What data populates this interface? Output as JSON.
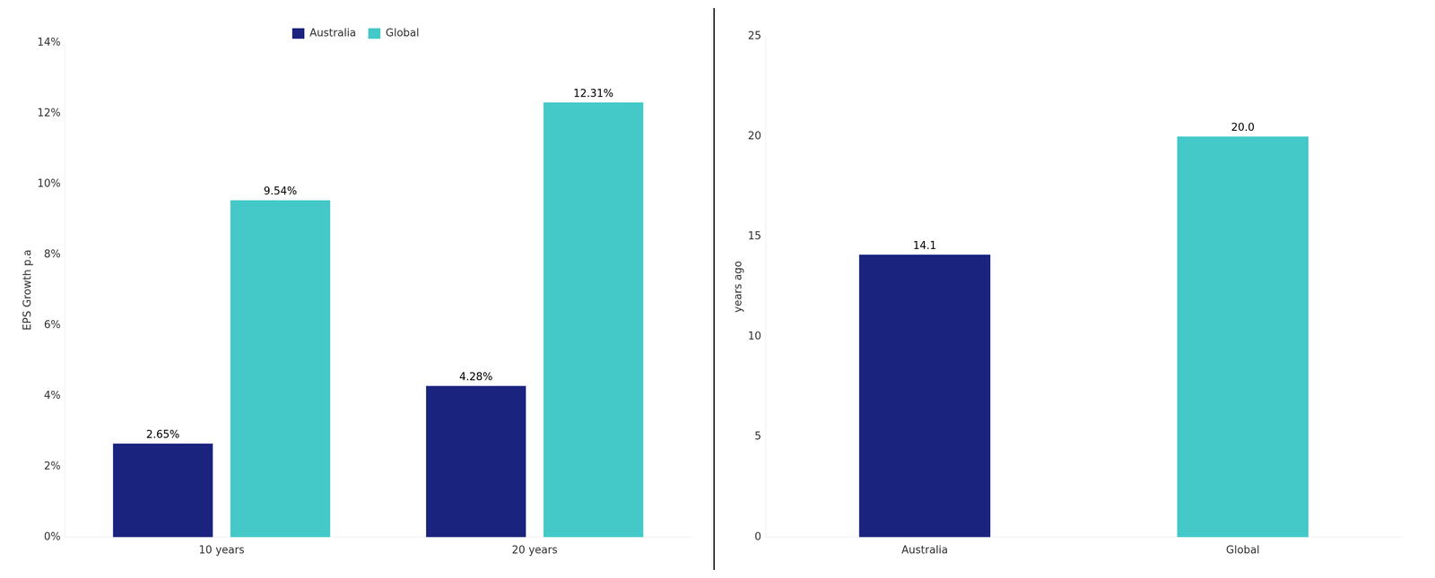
{
  "chart_data": [
    {
      "type": "bar",
      "categories": [
        "10 years",
        "20 years"
      ],
      "series": [
        {
          "name": "Australia",
          "color": "#1a237e",
          "values": [
            0.0265,
            0.0428
          ],
          "value_labels": [
            "2.65%",
            "4.28%"
          ]
        },
        {
          "name": "Global",
          "color": "#44c8c8",
          "values": [
            0.0954,
            0.1231
          ],
          "value_labels": [
            "9.54%",
            "12.31%"
          ]
        }
      ],
      "ylabel": "EPS Growth p.a",
      "ylim": [
        0,
        0.14
      ],
      "yticks": [
        {
          "value": 0.0,
          "label": "0%"
        },
        {
          "value": 0.02,
          "label": "2%"
        },
        {
          "value": 0.04,
          "label": "4%"
        },
        {
          "value": 0.06,
          "label": "6%"
        },
        {
          "value": 0.08,
          "label": "8%"
        },
        {
          "value": 0.1,
          "label": "10%"
        },
        {
          "value": 0.12,
          "label": "12%"
        },
        {
          "value": 0.14,
          "label": "14%"
        }
      ],
      "grid": false,
      "legend": "top",
      "data_labels": true
    },
    {
      "type": "bar",
      "categories": [
        "Australia",
        "Global"
      ],
      "values": [
        14.1,
        20.0
      ],
      "value_labels": [
        "14.1",
        "20.0"
      ],
      "colors": [
        "#1a237e",
        "#44c8c8"
      ],
      "ylabel": "years ago",
      "ylim": [
        0,
        25
      ],
      "yticks": [
        0,
        5,
        10,
        15,
        20,
        25
      ],
      "grid": false,
      "data_labels": true
    }
  ]
}
